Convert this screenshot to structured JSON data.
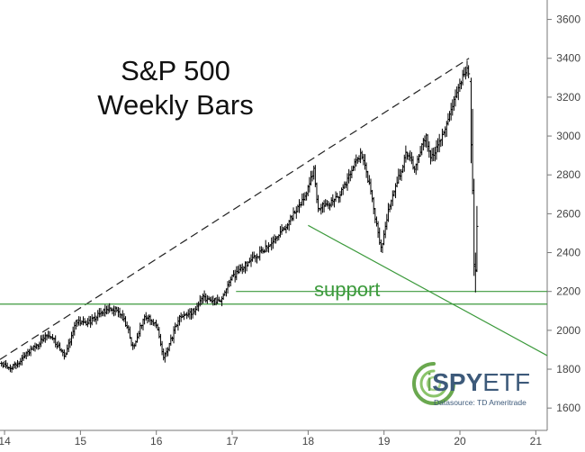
{
  "chart_data": {
    "type": "ohlc",
    "title_lines": [
      "S&P 500",
      "Weekly Bars"
    ],
    "x_tick_labels": [
      "14",
      "15",
      "16",
      "17",
      "18",
      "19",
      "20",
      "21"
    ],
    "x_ticks": [
      2014,
      2015,
      2016,
      2017,
      2018,
      2019,
      2020,
      2021
    ],
    "y_tick_labels": [
      "1600",
      "1800",
      "2000",
      "2200",
      "2400",
      "2600",
      "2800",
      "3000",
      "3200",
      "3400",
      "3600"
    ],
    "y_ticks": [
      1600,
      1800,
      2000,
      2200,
      2400,
      2600,
      2800,
      3000,
      3200,
      3400,
      3600
    ],
    "xlim": [
      2013.94,
      2021.15
    ],
    "ylim": [
      1485,
      3700
    ],
    "anchors": [
      [
        2013.96,
        1830
      ],
      [
        2014.08,
        1800
      ],
      [
        2014.3,
        1880
      ],
      [
        2014.55,
        1970
      ],
      [
        2014.65,
        1950
      ],
      [
        2014.8,
        1870
      ],
      [
        2014.95,
        2050
      ],
      [
        2015.1,
        2040
      ],
      [
        2015.35,
        2110
      ],
      [
        2015.5,
        2100
      ],
      [
        2015.62,
        2020
      ],
      [
        2015.68,
        1900
      ],
      [
        2015.85,
        2080
      ],
      [
        2016.0,
        2020
      ],
      [
        2016.1,
        1860
      ],
      [
        2016.3,
        2060
      ],
      [
        2016.5,
        2100
      ],
      [
        2016.6,
        2170
      ],
      [
        2016.85,
        2140
      ],
      [
        2016.95,
        2250
      ],
      [
        2017.2,
        2350
      ],
      [
        2017.5,
        2440
      ],
      [
        2017.75,
        2560
      ],
      [
        2017.98,
        2700
      ],
      [
        2018.08,
        2840
      ],
      [
        2018.12,
        2630
      ],
      [
        2018.4,
        2680
      ],
      [
        2018.7,
        2920
      ],
      [
        2018.82,
        2720
      ],
      [
        2018.96,
        2420
      ],
      [
        2019.05,
        2600
      ],
      [
        2019.3,
        2920
      ],
      [
        2019.4,
        2830
      ],
      [
        2019.55,
        3000
      ],
      [
        2019.62,
        2880
      ],
      [
        2019.75,
        2980
      ],
      [
        2020.0,
        3280
      ],
      [
        2020.1,
        3340
      ],
      [
        2020.13,
        3280
      ]
    ],
    "crash_bars": [
      {
        "x": 2020.148,
        "open": 3280,
        "high": 3300,
        "low": 2860,
        "close": 2955
      },
      {
        "x": 2020.167,
        "open": 2955,
        "high": 3140,
        "low": 2700,
        "close": 2720
      },
      {
        "x": 2020.186,
        "open": 2720,
        "high": 2780,
        "low": 2280,
        "close": 2340
      },
      {
        "x": 2020.205,
        "open": 2330,
        "high": 2400,
        "low": 2195,
        "close": 2305
      },
      {
        "x": 2020.224,
        "open": 2310,
        "high": 2640,
        "low": 2300,
        "close": 2535
      }
    ],
    "trendlines": [
      {
        "kind": "resistance",
        "style": "dashed",
        "color": "#222222",
        "points": [
          [
            2013.94,
            1850
          ],
          [
            2020.12,
            3400
          ]
        ]
      },
      {
        "kind": "channel",
        "style": "solid",
        "color": "#3c9a3c",
        "points": [
          [
            2018.0,
            2540
          ],
          [
            2021.15,
            1870
          ]
        ]
      },
      {
        "kind": "support",
        "style": "solid",
        "color": "#3c9a3c",
        "points": [
          [
            2013.94,
            2135
          ],
          [
            2021.15,
            2135
          ]
        ]
      },
      {
        "kind": "support",
        "style": "solid",
        "color": "#3c9a3c",
        "points": [
          [
            2017.05,
            2200
          ],
          [
            2021.15,
            2200
          ]
        ]
      }
    ],
    "annotations": [
      {
        "text": "support"
      }
    ],
    "legend": "none",
    "grid": false,
    "colors": {
      "bars": "#000000",
      "trendline": "#222222",
      "support": "#3c9a3c",
      "axis": "#777777",
      "logo": "#6aa84f"
    }
  },
  "logo": {
    "name": "iSPYETF",
    "prefix": "i",
    "middle": "SPY",
    "suffix": "ETF",
    "subtitle": "Datasource: TD Ameritrade"
  }
}
